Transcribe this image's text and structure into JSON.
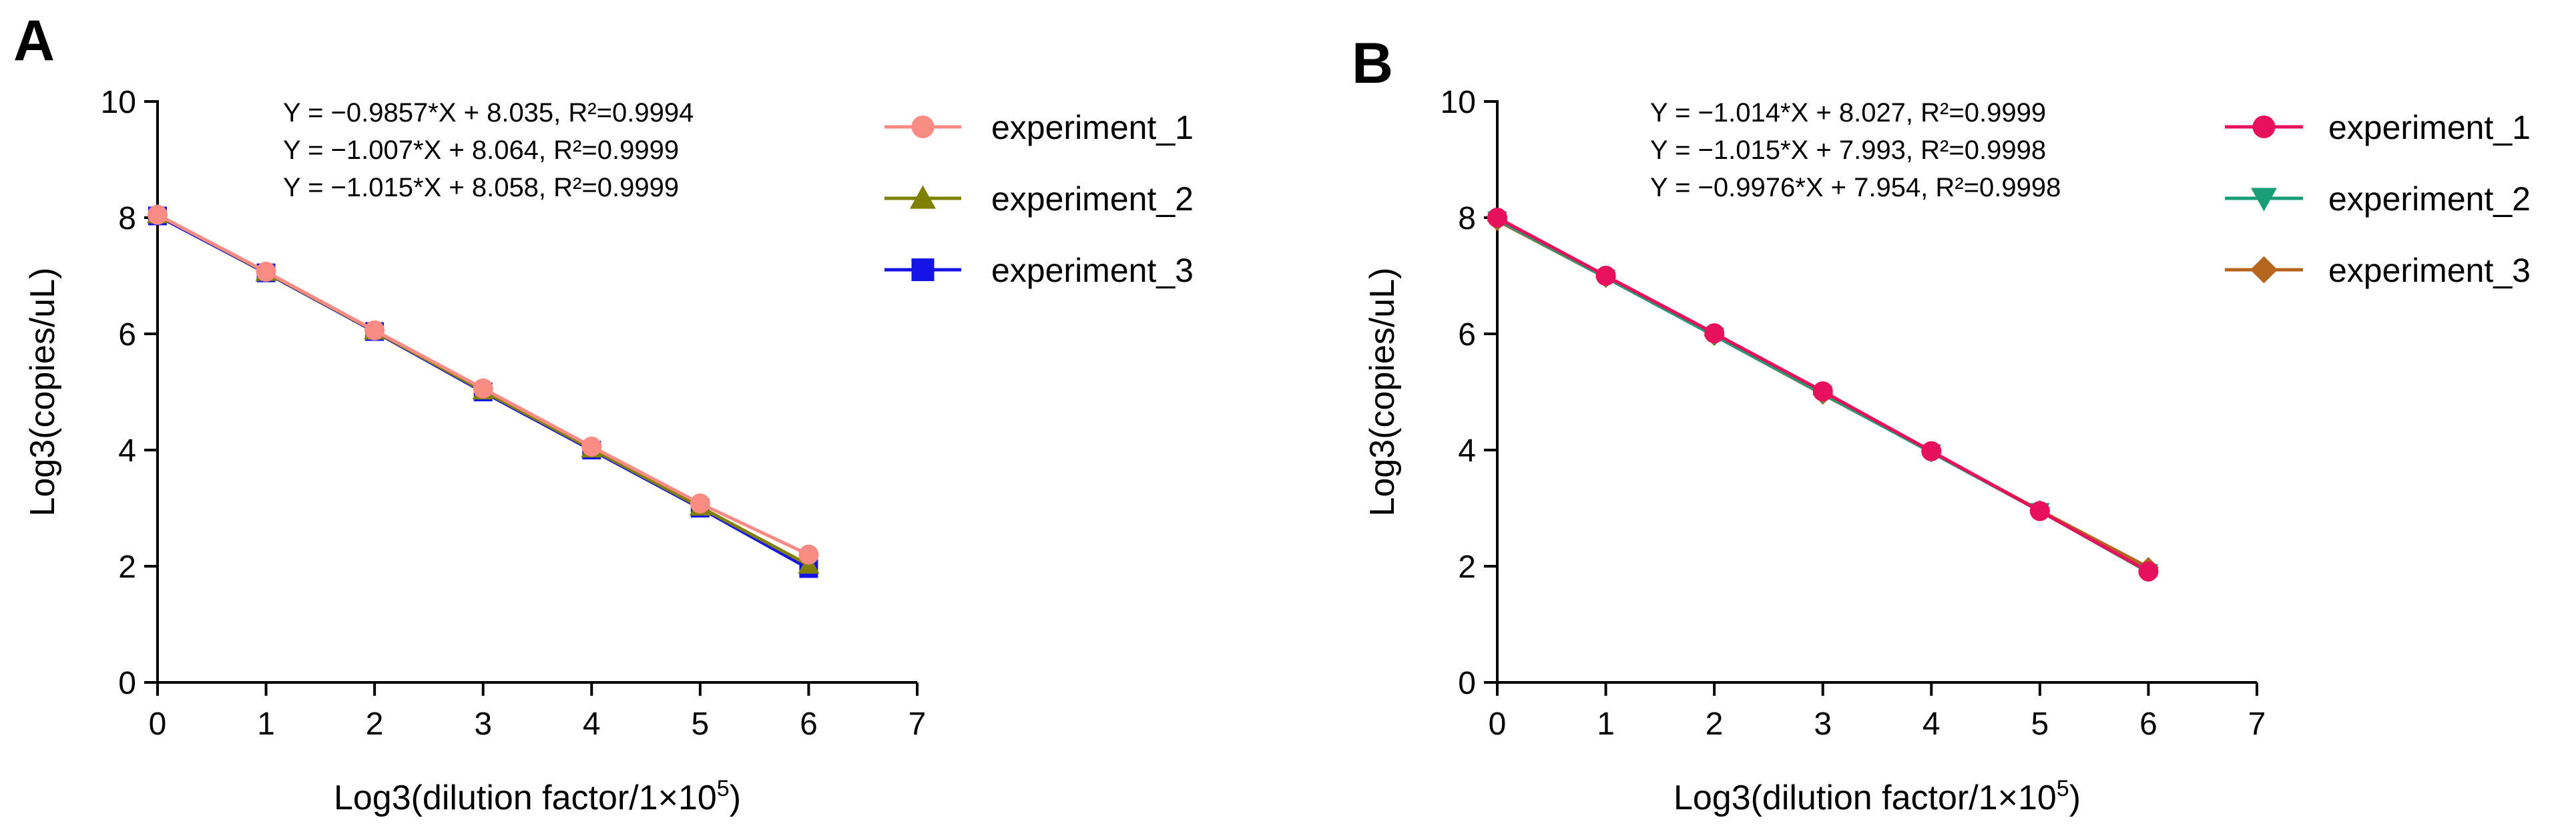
{
  "chart_data": [
    {
      "type": "line",
      "panel_label": "A",
      "xlabel": "Log3(dilution factor/1×10",
      "xlabel_sup": "5",
      "xlabel_end": ")",
      "ylabel": "Log3(copies/uL)",
      "xlim": [
        0,
        7
      ],
      "ylim": [
        0,
        10
      ],
      "xticks": [
        0,
        1,
        2,
        3,
        4,
        5,
        6,
        7
      ],
      "yticks": [
        0,
        2,
        4,
        6,
        8,
        10
      ],
      "xtick_labels": [
        "0",
        "1",
        "2",
        "3",
        "4",
        "5",
        "6",
        "7"
      ],
      "ytick_labels": [
        "0",
        "2",
        "4",
        "6",
        "8",
        "10"
      ],
      "legend_position": "top-right, outside plot",
      "equations": [
        "Y = −0.9857*X + 8.035, R²=0.9994",
        "Y = −1.007*X + 8.064, R²=0.9999",
        "Y = −1.015*X + 8.058, R²=0.9999"
      ],
      "x": [
        0,
        1,
        2,
        3,
        4,
        5,
        6
      ],
      "series": [
        {
          "name": "experiment_3",
          "color": "#1414e6",
          "marker": "square",
          "values": [
            8.03,
            7.05,
            6.04,
            5.0,
            4.0,
            3.0,
            1.96
          ]
        },
        {
          "name": "experiment_2",
          "color": "#808000",
          "marker": "triangle-up",
          "values": [
            8.05,
            7.06,
            6.05,
            5.02,
            4.02,
            3.02,
            2.02
          ]
        },
        {
          "name": "experiment_1",
          "color": "#f98b84",
          "marker": "circle",
          "values": [
            8.05,
            7.07,
            6.06,
            5.06,
            4.06,
            3.08,
            2.2
          ]
        }
      ],
      "legend_order": [
        "experiment_1",
        "experiment_2",
        "experiment_3"
      ]
    },
    {
      "type": "line",
      "panel_label": "B",
      "xlabel": "Log3(dilution factor/1×10",
      "xlabel_sup": "5",
      "xlabel_end": ")",
      "ylabel": "Log3(copies/uL)",
      "xlim": [
        0,
        7
      ],
      "ylim": [
        0,
        10
      ],
      "xticks": [
        0,
        1,
        2,
        3,
        4,
        5,
        6,
        7
      ],
      "yticks": [
        0,
        2,
        4,
        6,
        8,
        10
      ],
      "xtick_labels": [
        "0",
        "1",
        "2",
        "3",
        "4",
        "5",
        "6",
        "7"
      ],
      "ytick_labels": [
        "0",
        "2",
        "4",
        "6",
        "8",
        "10"
      ],
      "legend_position": "top-right, outside plot",
      "equations": [
        "Y = −1.014*X + 8.027, R²=0.9999",
        "Y = −1.015*X + 7.993, R²=0.9998",
        "Y = −0.9976*X + 7.954, R²=0.9998"
      ],
      "x": [
        0,
        1,
        2,
        3,
        4,
        5,
        6
      ],
      "series": [
        {
          "name": "experiment_3",
          "color": "#b5651d",
          "marker": "diamond",
          "values": [
            7.95,
            6.97,
            5.97,
            4.96,
            3.97,
            2.96,
            1.98
          ]
        },
        {
          "name": "experiment_2",
          "color": "#1a9e77",
          "marker": "triangle-down",
          "values": [
            7.97,
            6.97,
            5.97,
            4.97,
            3.96,
            2.95,
            1.9
          ]
        },
        {
          "name": "experiment_1",
          "color": "#e7115b",
          "marker": "circle",
          "values": [
            8.0,
            7.0,
            6.01,
            5.01,
            3.98,
            2.95,
            1.91
          ]
        }
      ],
      "legend_order": [
        "experiment_1",
        "experiment_2",
        "experiment_3"
      ]
    }
  ]
}
